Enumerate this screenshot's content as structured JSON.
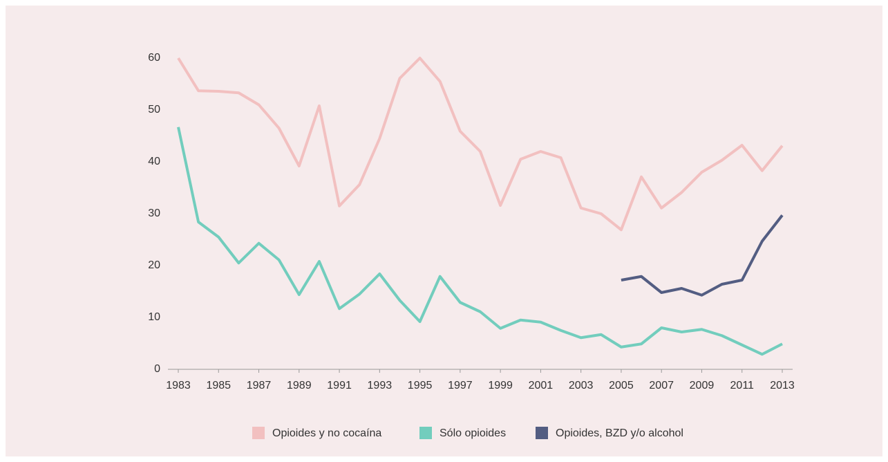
{
  "chart_data": {
    "type": "line",
    "x": [
      1983,
      1984,
      1985,
      1986,
      1987,
      1988,
      1989,
      1990,
      1991,
      1992,
      1993,
      1994,
      1995,
      1996,
      1997,
      1998,
      1999,
      2000,
      2001,
      2002,
      2003,
      2004,
      2005,
      2006,
      2007,
      2008,
      2009,
      2010,
      2011,
      2012,
      2013
    ],
    "xlim": [
      1983,
      2013
    ],
    "xticks": [
      1983,
      1985,
      1987,
      1989,
      1991,
      1993,
      1995,
      1997,
      1999,
      2001,
      2003,
      2005,
      2007,
      2009,
      2011,
      2013
    ],
    "ylim": [
      0,
      60
    ],
    "yticks": [
      0,
      10,
      20,
      30,
      40,
      50,
      60
    ],
    "legend": "bottom",
    "series": [
      {
        "name": "Opioides y no cocaína",
        "color": "#f2c0c0",
        "values": [
          60,
          53.7,
          53.6,
          53.3,
          51,
          46.5,
          39.2,
          50.8,
          31.5,
          35.6,
          44.5,
          56.1,
          60,
          55.5,
          45.9,
          42,
          31.6,
          40.5,
          42,
          40.8,
          31.1,
          30,
          26.9,
          37.1,
          31.1,
          34.1,
          38,
          40.3,
          43.2,
          38.3,
          43.1
        ]
      },
      {
        "name": "Sólo opioides",
        "color": "#72cdbd",
        "values": [
          46.7,
          28.4,
          25.5,
          20.5,
          24.3,
          21.1,
          14.4,
          20.8,
          11.7,
          14.5,
          18.4,
          13.3,
          9.2,
          17.9,
          12.9,
          11.1,
          7.9,
          9.5,
          9.1,
          7.5,
          6.1,
          6.7,
          4.3,
          4.9,
          8,
          7.2,
          7.7,
          6.5,
          4.7,
          2.9,
          4.9
        ]
      },
      {
        "name": "Opioides, BZD y/o alcohol",
        "color": "#535d82",
        "values": [
          null,
          null,
          null,
          null,
          null,
          null,
          null,
          null,
          null,
          null,
          null,
          null,
          null,
          null,
          null,
          null,
          null,
          null,
          null,
          null,
          null,
          null,
          17.2,
          17.9,
          14.8,
          15.6,
          14.3,
          16.4,
          17.2,
          24.7,
          29.7
        ]
      }
    ]
  }
}
